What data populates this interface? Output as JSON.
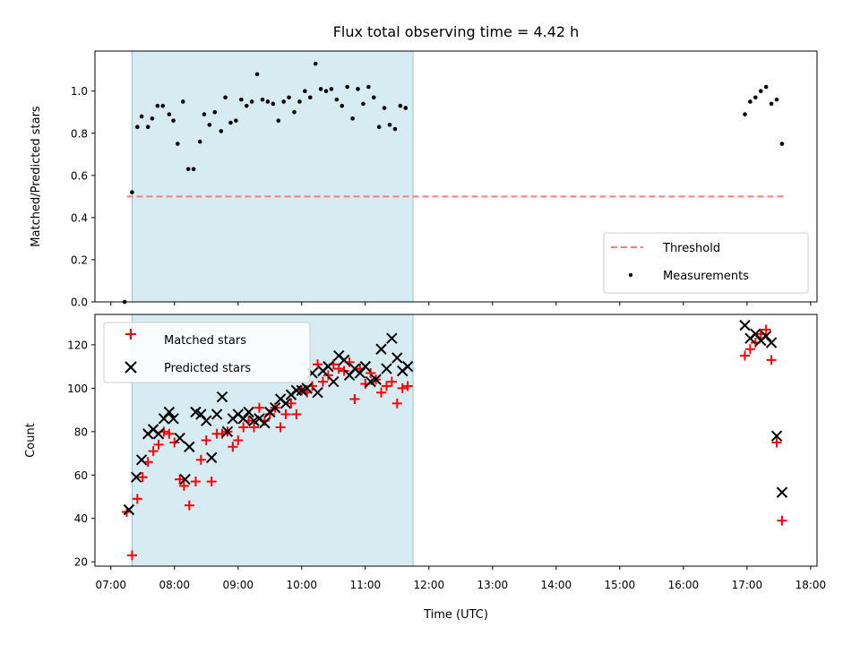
{
  "chart_data": [
    {
      "type": "scatter",
      "title": "Flux total observing time = 4.42 h",
      "xlabel": "",
      "ylabel": "Matched/Predicted stars",
      "ylim": [
        0,
        1.19
      ],
      "yticks": [
        "0.0",
        "0.2",
        "0.4",
        "0.6",
        "0.8",
        "1.0"
      ],
      "legend_position": "lower-right",
      "shaded_region": {
        "start": "07:20",
        "end": "11:45"
      },
      "series": [
        {
          "name": "Threshold",
          "style": "dashed-line",
          "color": "#f08080",
          "points": [
            {
              "x": "07:15",
              "y": 0.5
            },
            {
              "x": "17:35",
              "y": 0.5
            }
          ]
        },
        {
          "name": "Measurements",
          "style": "dot",
          "color": "#000000",
          "points": [
            {
              "x": "07:13",
              "y": 0.0
            },
            {
              "x": "07:20",
              "y": 0.52
            },
            {
              "x": "07:25",
              "y": 0.83
            },
            {
              "x": "07:29",
              "y": 0.88
            },
            {
              "x": "07:35",
              "y": 0.83
            },
            {
              "x": "07:39",
              "y": 0.87
            },
            {
              "x": "07:44",
              "y": 0.93
            },
            {
              "x": "07:49",
              "y": 0.93
            },
            {
              "x": "07:55",
              "y": 0.89
            },
            {
              "x": "07:59",
              "y": 0.86
            },
            {
              "x": "08:03",
              "y": 0.75
            },
            {
              "x": "08:08",
              "y": 0.95
            },
            {
              "x": "08:13",
              "y": 0.63
            },
            {
              "x": "08:18",
              "y": 0.63
            },
            {
              "x": "08:24",
              "y": 0.76
            },
            {
              "x": "08:28",
              "y": 0.89
            },
            {
              "x": "08:33",
              "y": 0.84
            },
            {
              "x": "08:38",
              "y": 0.9
            },
            {
              "x": "08:44",
              "y": 0.81
            },
            {
              "x": "08:48",
              "y": 0.97
            },
            {
              "x": "08:53",
              "y": 0.85
            },
            {
              "x": "08:58",
              "y": 0.86
            },
            {
              "x": "09:03",
              "y": 0.96
            },
            {
              "x": "09:08",
              "y": 0.93
            },
            {
              "x": "09:13",
              "y": 0.95
            },
            {
              "x": "09:18",
              "y": 1.08
            },
            {
              "x": "09:23",
              "y": 0.96
            },
            {
              "x": "09:28",
              "y": 0.95
            },
            {
              "x": "09:33",
              "y": 0.94
            },
            {
              "x": "09:38",
              "y": 0.86
            },
            {
              "x": "09:43",
              "y": 0.95
            },
            {
              "x": "09:48",
              "y": 0.97
            },
            {
              "x": "09:53",
              "y": 0.9
            },
            {
              "x": "09:58",
              "y": 0.95
            },
            {
              "x": "10:03",
              "y": 1.0
            },
            {
              "x": "10:08",
              "y": 0.97
            },
            {
              "x": "10:13",
              "y": 1.13
            },
            {
              "x": "10:18",
              "y": 1.01
            },
            {
              "x": "10:23",
              "y": 1.0
            },
            {
              "x": "10:28",
              "y": 1.01
            },
            {
              "x": "10:33",
              "y": 0.96
            },
            {
              "x": "10:38",
              "y": 0.93
            },
            {
              "x": "10:43",
              "y": 1.02
            },
            {
              "x": "10:48",
              "y": 0.87
            },
            {
              "x": "10:53",
              "y": 1.01
            },
            {
              "x": "10:58",
              "y": 0.94
            },
            {
              "x": "11:03",
              "y": 1.02
            },
            {
              "x": "11:08",
              "y": 0.97
            },
            {
              "x": "11:13",
              "y": 0.83
            },
            {
              "x": "11:18",
              "y": 0.92
            },
            {
              "x": "11:23",
              "y": 0.84
            },
            {
              "x": "11:28",
              "y": 0.82
            },
            {
              "x": "11:33",
              "y": 0.93
            },
            {
              "x": "11:38",
              "y": 0.92
            },
            {
              "x": "16:58",
              "y": 0.89
            },
            {
              "x": "17:03",
              "y": 0.95
            },
            {
              "x": "17:08",
              "y": 0.97
            },
            {
              "x": "17:13",
              "y": 1.0
            },
            {
              "x": "17:18",
              "y": 1.02
            },
            {
              "x": "17:23",
              "y": 0.94
            },
            {
              "x": "17:28",
              "y": 0.96
            },
            {
              "x": "17:33",
              "y": 0.75
            }
          ]
        }
      ]
    },
    {
      "type": "scatter",
      "title": "",
      "xlabel": "Time (UTC)",
      "ylabel": "Count",
      "ylim": [
        18,
        134
      ],
      "yticks": [
        "20",
        "40",
        "60",
        "80",
        "100",
        "120"
      ],
      "legend_position": "upper-left",
      "shaded_region": {
        "start": "07:20",
        "end": "11:45"
      },
      "x_ticks": [
        "07:00",
        "08:00",
        "09:00",
        "10:00",
        "11:00",
        "12:00",
        "13:00",
        "14:00",
        "15:00",
        "16:00",
        "17:00",
        "18:00"
      ],
      "series": [
        {
          "name": "Matched stars",
          "style": "plus",
          "color": "#ff0000",
          "points": [
            {
              "x": "07:15",
              "y": 43
            },
            {
              "x": "07:20",
              "y": 23
            },
            {
              "x": "07:25",
              "y": 49
            },
            {
              "x": "07:30",
              "y": 59
            },
            {
              "x": "07:35",
              "y": 66
            },
            {
              "x": "07:40",
              "y": 71
            },
            {
              "x": "07:45",
              "y": 74
            },
            {
              "x": "07:50",
              "y": 80
            },
            {
              "x": "07:55",
              "y": 79
            },
            {
              "x": "08:00",
              "y": 75
            },
            {
              "x": "08:05",
              "y": 58
            },
            {
              "x": "08:09",
              "y": 55
            },
            {
              "x": "08:14",
              "y": 46
            },
            {
              "x": "08:20",
              "y": 57
            },
            {
              "x": "08:25",
              "y": 67
            },
            {
              "x": "08:30",
              "y": 76
            },
            {
              "x": "08:35",
              "y": 57
            },
            {
              "x": "08:40",
              "y": 79
            },
            {
              "x": "08:45",
              "y": 79
            },
            {
              "x": "08:50",
              "y": 80
            },
            {
              "x": "08:55",
              "y": 73
            },
            {
              "x": "09:00",
              "y": 76
            },
            {
              "x": "09:05",
              "y": 82
            },
            {
              "x": "09:10",
              "y": 85
            },
            {
              "x": "09:15",
              "y": 82
            },
            {
              "x": "09:20",
              "y": 91
            },
            {
              "x": "09:25",
              "y": 85
            },
            {
              "x": "09:30",
              "y": 88
            },
            {
              "x": "09:35",
              "y": 91
            },
            {
              "x": "09:40",
              "y": 82
            },
            {
              "x": "09:45",
              "y": 88
            },
            {
              "x": "09:50",
              "y": 93
            },
            {
              "x": "09:55",
              "y": 88
            },
            {
              "x": "10:00",
              "y": 99
            },
            {
              "x": "10:05",
              "y": 98
            },
            {
              "x": "10:10",
              "y": 101
            },
            {
              "x": "10:15",
              "y": 111
            },
            {
              "x": "10:20",
              "y": 103
            },
            {
              "x": "10:25",
              "y": 106
            },
            {
              "x": "10:30",
              "y": 111
            },
            {
              "x": "10:35",
              "y": 109
            },
            {
              "x": "10:40",
              "y": 108
            },
            {
              "x": "10:45",
              "y": 112
            },
            {
              "x": "10:50",
              "y": 95
            },
            {
              "x": "10:55",
              "y": 109
            },
            {
              "x": "11:00",
              "y": 102
            },
            {
              "x": "11:05",
              "y": 107
            },
            {
              "x": "11:10",
              "y": 104
            },
            {
              "x": "11:15",
              "y": 98
            },
            {
              "x": "11:20",
              "y": 101
            },
            {
              "x": "11:25",
              "y": 103
            },
            {
              "x": "11:30",
              "y": 93
            },
            {
              "x": "11:35",
              "y": 100
            },
            {
              "x": "11:40",
              "y": 101
            },
            {
              "x": "16:58",
              "y": 115
            },
            {
              "x": "17:03",
              "y": 118
            },
            {
              "x": "17:08",
              "y": 121
            },
            {
              "x": "17:13",
              "y": 125
            },
            {
              "x": "17:18",
              "y": 127
            },
            {
              "x": "17:23",
              "y": 113
            },
            {
              "x": "17:28",
              "y": 75
            },
            {
              "x": "17:33",
              "y": 39
            }
          ]
        },
        {
          "name": "Predicted stars",
          "style": "x",
          "color": "#000000",
          "points": [
            {
              "x": "07:17",
              "y": 44
            },
            {
              "x": "07:24",
              "y": 59
            },
            {
              "x": "07:29",
              "y": 67
            },
            {
              "x": "07:35",
              "y": 79
            },
            {
              "x": "07:40",
              "y": 81
            },
            {
              "x": "07:45",
              "y": 79
            },
            {
              "x": "07:50",
              "y": 86
            },
            {
              "x": "07:55",
              "y": 89
            },
            {
              "x": "07:59",
              "y": 86
            },
            {
              "x": "08:05",
              "y": 77
            },
            {
              "x": "08:10",
              "y": 58
            },
            {
              "x": "08:14",
              "y": 73
            },
            {
              "x": "08:20",
              "y": 89
            },
            {
              "x": "08:25",
              "y": 88
            },
            {
              "x": "08:30",
              "y": 85
            },
            {
              "x": "08:35",
              "y": 68
            },
            {
              "x": "08:40",
              "y": 88
            },
            {
              "x": "08:45",
              "y": 96
            },
            {
              "x": "08:50",
              "y": 80
            },
            {
              "x": "08:55",
              "y": 86
            },
            {
              "x": "09:00",
              "y": 88
            },
            {
              "x": "09:05",
              "y": 86
            },
            {
              "x": "09:10",
              "y": 89
            },
            {
              "x": "09:15",
              "y": 85
            },
            {
              "x": "09:20",
              "y": 86
            },
            {
              "x": "09:25",
              "y": 84
            },
            {
              "x": "09:30",
              "y": 89
            },
            {
              "x": "09:35",
              "y": 91
            },
            {
              "x": "09:40",
              "y": 95
            },
            {
              "x": "09:45",
              "y": 93
            },
            {
              "x": "09:50",
              "y": 97
            },
            {
              "x": "09:55",
              "y": 99
            },
            {
              "x": "10:00",
              "y": 99
            },
            {
              "x": "10:05",
              "y": 100
            },
            {
              "x": "10:10",
              "y": 107
            },
            {
              "x": "10:15",
              "y": 98
            },
            {
              "x": "10:20",
              "y": 108
            },
            {
              "x": "10:25",
              "y": 110
            },
            {
              "x": "10:30",
              "y": 103
            },
            {
              "x": "10:35",
              "y": 115
            },
            {
              "x": "10:40",
              "y": 113
            },
            {
              "x": "10:45",
              "y": 106
            },
            {
              "x": "10:50",
              "y": 109
            },
            {
              "x": "10:55",
              "y": 107
            },
            {
              "x": "11:00",
              "y": 110
            },
            {
              "x": "11:05",
              "y": 103
            },
            {
              "x": "11:10",
              "y": 104
            },
            {
              "x": "11:15",
              "y": 118
            },
            {
              "x": "11:20",
              "y": 109
            },
            {
              "x": "11:25",
              "y": 123
            },
            {
              "x": "11:30",
              "y": 114
            },
            {
              "x": "11:35",
              "y": 108
            },
            {
              "x": "11:40",
              "y": 110
            },
            {
              "x": "16:58",
              "y": 129
            },
            {
              "x": "17:03",
              "y": 123
            },
            {
              "x": "17:08",
              "y": 125
            },
            {
              "x": "17:13",
              "y": 122
            },
            {
              "x": "17:18",
              "y": 124
            },
            {
              "x": "17:23",
              "y": 121
            },
            {
              "x": "17:28",
              "y": 78
            },
            {
              "x": "17:33",
              "y": 52
            }
          ]
        }
      ]
    }
  ]
}
